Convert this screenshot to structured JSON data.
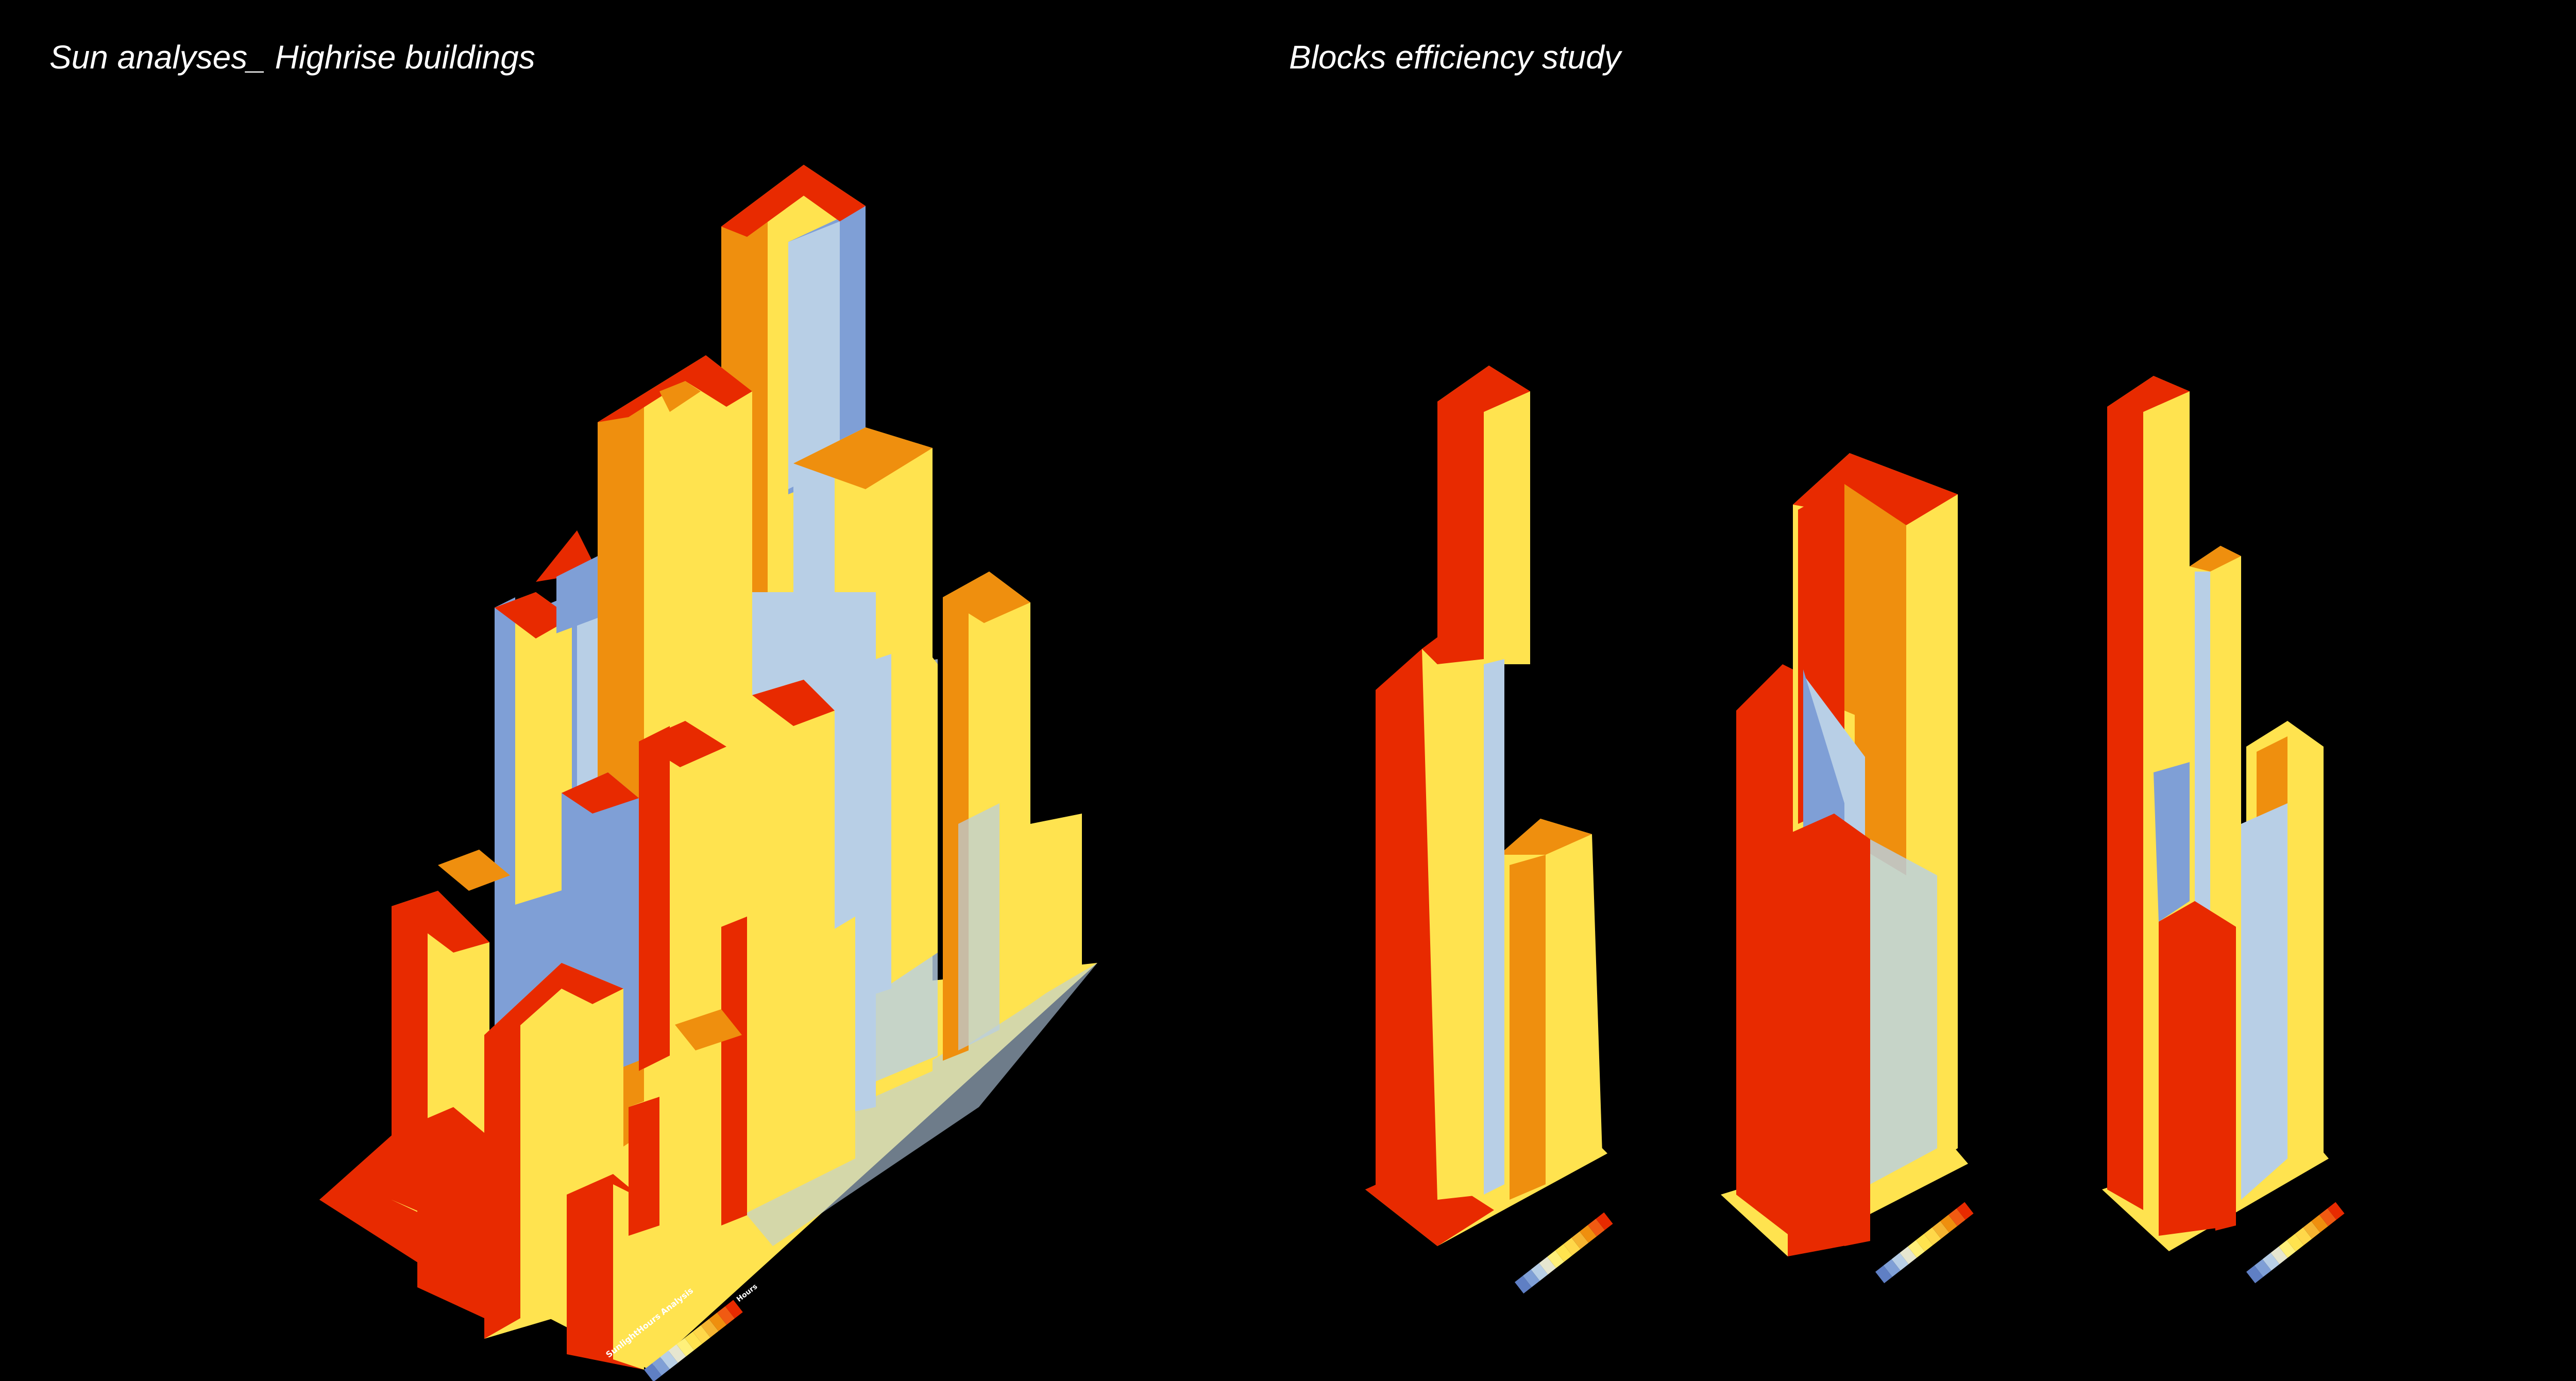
{
  "titles": {
    "left": "Sun analyses_ Highrise buildings",
    "right": "Blocks efficiency study"
  },
  "palette": {
    "red": "#e82a00",
    "orange": "#ef8f0e",
    "yellow": "#ffe34f",
    "light_yellow": "#fff07a",
    "light_blue": "#b8cfe6",
    "blue": "#7f9fd6",
    "dark_blue": "#5f7fc4"
  },
  "legend": {
    "header": "Hours",
    "analysis_label": "SunlightHours Analysis",
    "scale_colors": [
      "#e82a00",
      "#f05a12",
      "#ef8f0e",
      "#f5b431",
      "#ffd84a",
      "#ffe34f",
      "#fff07a",
      "#e6e6d0",
      "#b8cfe6",
      "#7f9fd6",
      "#5f7fc4"
    ]
  }
}
